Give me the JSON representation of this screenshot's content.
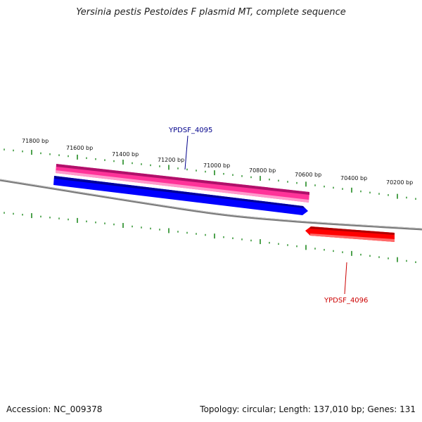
{
  "title": "Yersinia pestis Pestoides F plasmid MT, complete sequence",
  "footer": {
    "accession": "Accession: NC_009378",
    "summary": "Topology: circular; Length: 137,010 bp; Genes: 131"
  },
  "colors": {
    "backbone": "#808080",
    "ticks": "#228B22",
    "gene_forward": "#0000ff",
    "gene_reverse": "#ff0000",
    "feature_pink": "#ff3399",
    "label_blue": "#00008b",
    "label_red": "#cc0000"
  },
  "ruler": {
    "labels": [
      "71800 bp",
      "71600 bp",
      "71400 bp",
      "71200 bp",
      "71000 bp",
      "70800 bp",
      "70600 bp",
      "70400 bp",
      "70200 bp"
    ]
  },
  "genes": [
    {
      "name": "YPDSF_4095",
      "strand": "forward"
    },
    {
      "name": "YPDSF_4096",
      "strand": "reverse"
    }
  ]
}
